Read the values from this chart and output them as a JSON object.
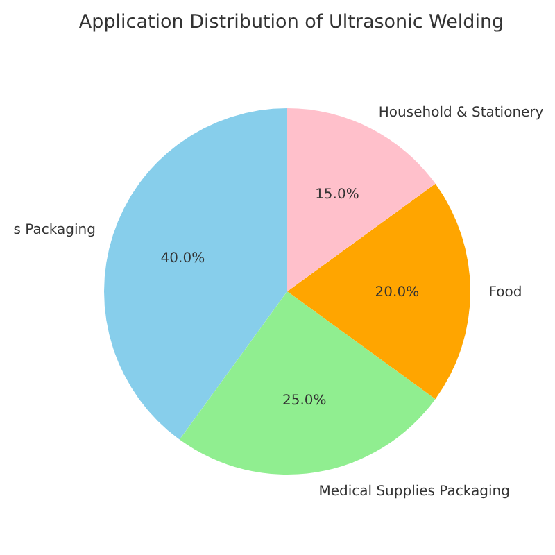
{
  "chart_data": {
    "type": "pie",
    "title": "Application Distribution of Ultrasonic Welding",
    "categories": [
      "s Packaging",
      "Medical Supplies Packaging",
      "Food",
      "Household & Stationery"
    ],
    "values": [
      40,
      25,
      20,
      15
    ],
    "colors": [
      "#87ceeb",
      "#90ee90",
      "#ffa500",
      "#ffc0cb"
    ],
    "value_labels": [
      "40.0%",
      "25.0%",
      "20.0%",
      "15.0%"
    ]
  }
}
